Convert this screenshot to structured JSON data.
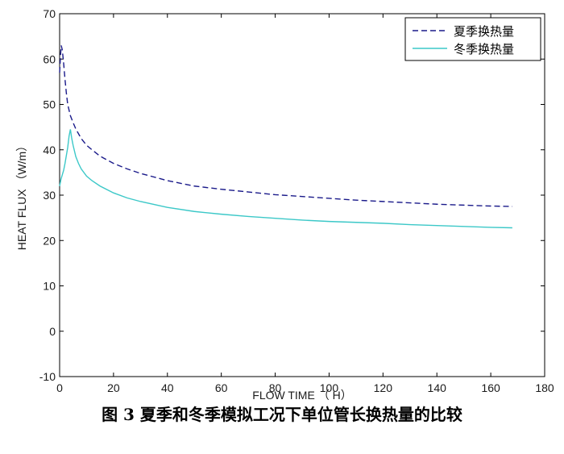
{
  "caption": "图 3  夏季和冬季模拟工况下单位管长换热量的比较",
  "chart_data": {
    "type": "line",
    "xlabel": "FLOW TIME （ H）",
    "ylabel": "HEAT FLUX （W/m）",
    "xlim": [
      0,
      180
    ],
    "ylim": [
      -10,
      70
    ],
    "xticks": [
      0,
      20,
      40,
      60,
      80,
      100,
      120,
      140,
      160,
      180
    ],
    "yticks": [
      -10,
      0,
      10,
      20,
      30,
      40,
      50,
      60,
      70
    ],
    "grid": false,
    "legend_position": "top-right",
    "series": [
      {
        "name": "夏季换热量",
        "color": "#1a1a8a",
        "line_style": "dashed",
        "x": [
          0,
          0.3,
          0.6,
          1,
          1.5,
          2,
          2.5,
          3,
          4,
          5,
          6,
          8,
          10,
          12,
          15,
          20,
          25,
          30,
          40,
          50,
          60,
          70,
          80,
          90,
          100,
          110,
          120,
          130,
          140,
          150,
          160,
          168
        ],
        "y": [
          57,
          60.5,
          63,
          62,
          59,
          55.5,
          52.5,
          50,
          47.5,
          46,
          44.6,
          42.5,
          41,
          40,
          38.6,
          37,
          35.8,
          34.8,
          33.2,
          32,
          31.3,
          30.7,
          30.1,
          29.7,
          29.3,
          28.9,
          28.6,
          28.3,
          28,
          27.8,
          27.6,
          27.5
        ]
      },
      {
        "name": "冬季换热量",
        "color": "#3cc8c8",
        "line_style": "solid",
        "x": [
          0,
          0.5,
          1,
          1.5,
          2,
          3,
          3.5,
          4,
          4.5,
          5,
          6,
          7,
          8,
          10,
          12,
          15,
          20,
          25,
          30,
          40,
          50,
          60,
          70,
          80,
          90,
          100,
          110,
          120,
          130,
          140,
          150,
          160,
          168
        ],
        "y": [
          32,
          33.5,
          34.5,
          35.5,
          37,
          40.5,
          43,
          44.5,
          42.5,
          41,
          38.5,
          37,
          35.8,
          34.2,
          33.2,
          32,
          30.5,
          29.4,
          28.6,
          27.3,
          26.4,
          25.8,
          25.3,
          24.9,
          24.5,
          24.2,
          24,
          23.8,
          23.5,
          23.3,
          23.1,
          22.9,
          22.8
        ]
      }
    ]
  }
}
